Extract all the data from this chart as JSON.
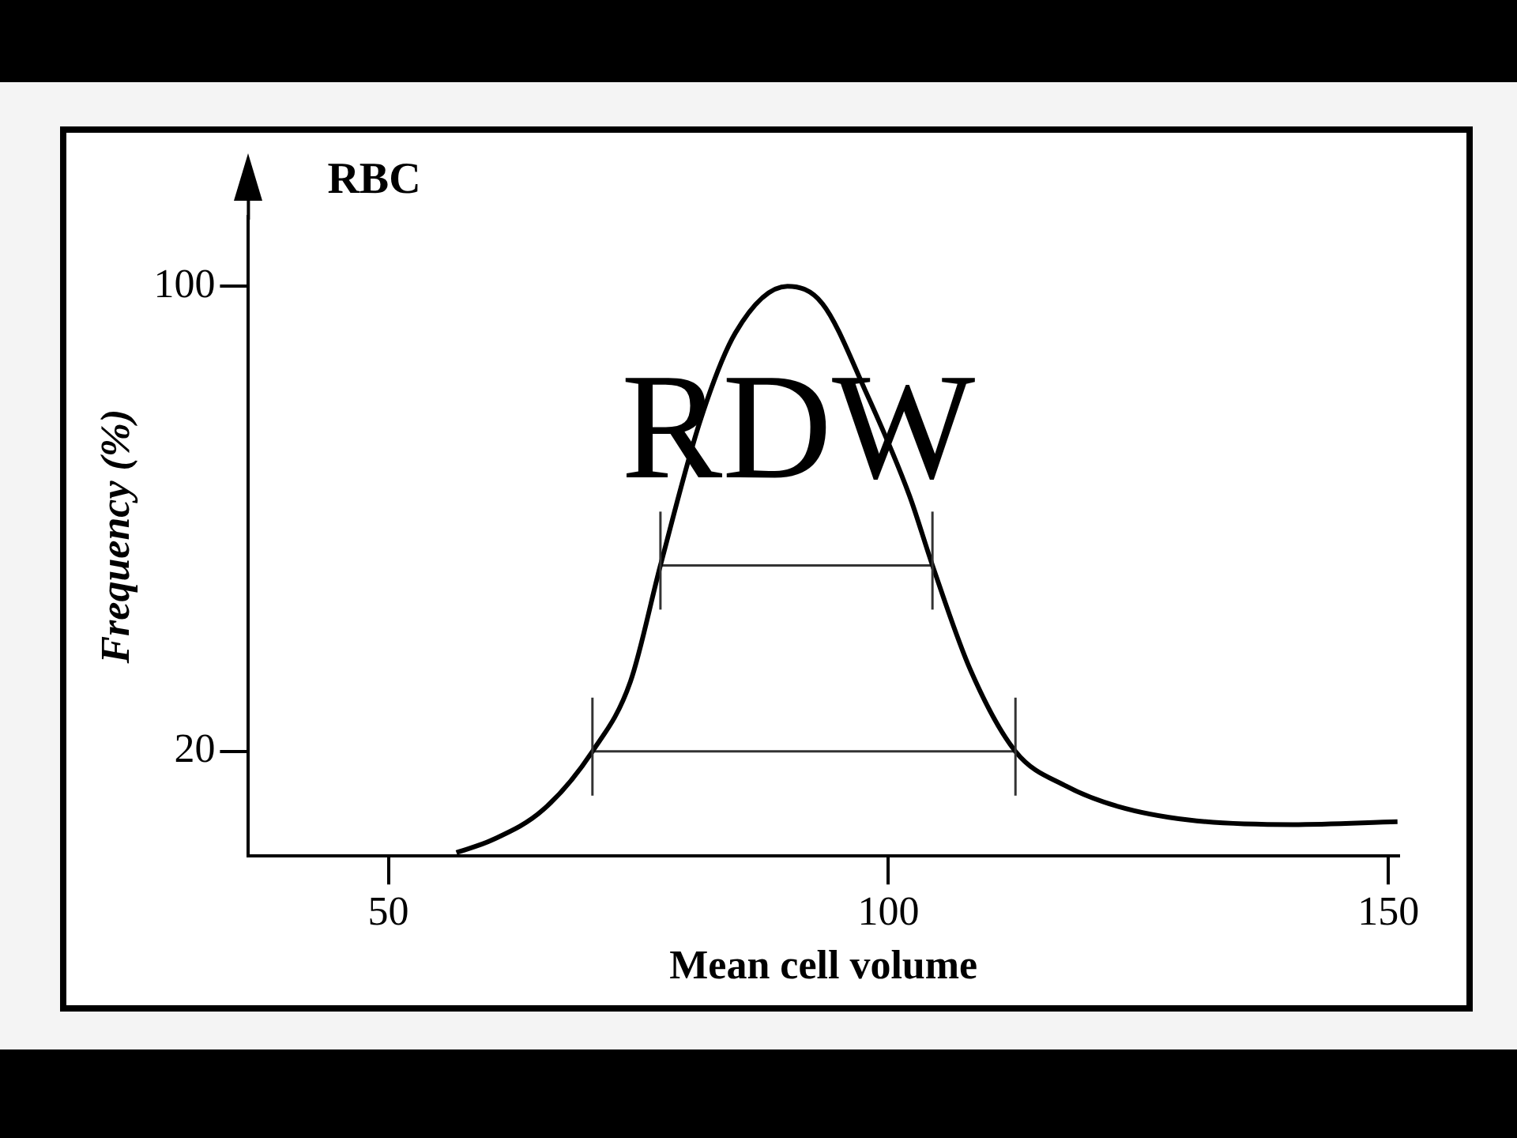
{
  "chart_data": {
    "type": "line",
    "title": "RBC",
    "xlabel": "Mean cell volume",
    "ylabel": "Frequency (%)",
    "xlim": [
      36,
      151
    ],
    "xticks": [
      50,
      100,
      150
    ],
    "ylim": [
      2,
      112
    ],
    "yticks": [
      20,
      100
    ],
    "grid": false,
    "legend": false,
    "marker": "none",
    "line_style": "solid",
    "annotations": [
      "RDW"
    ],
    "series": [
      {
        "color": "#000000",
        "x": [
          56.8,
          60.3,
          65.5,
          70.4,
          74.2,
          77.2,
          81.2,
          84.7,
          89.9,
          93.4,
          97.7,
          102.1,
          104.4,
          108.2,
          112.7,
          117.8,
          123,
          130,
          140.4,
          150.9
        ],
        "values": [
          2.6,
          4.7,
          10,
          20,
          32,
          52,
          77,
          92,
          100,
          97,
          82,
          64,
          52,
          34,
          20,
          14,
          10.5,
          8.2,
          7.4,
          7.9
        ]
      },
      {
        "color": "#333333",
        "x": [
          77.2,
          104.4
        ],
        "values": [
          52,
          52
        ]
      },
      {
        "color": "#333333",
        "x": [
          70.4,
          112.7
        ],
        "values": [
          20,
          20
        ]
      }
    ]
  }
}
